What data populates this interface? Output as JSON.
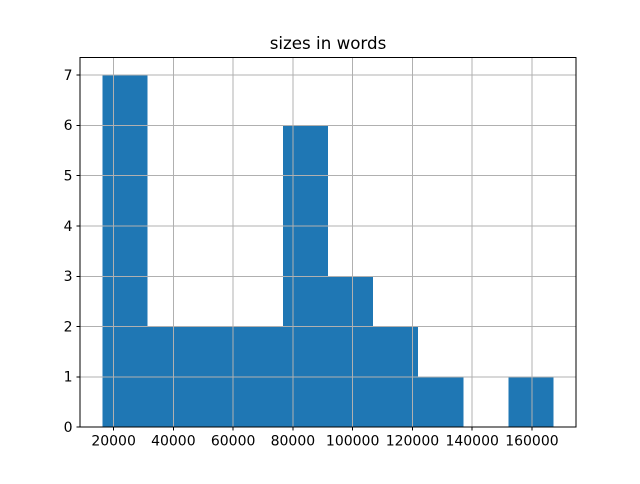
{
  "chart_data": {
    "type": "bar",
    "subtype": "histogram",
    "title": "sizes in words",
    "xlabel": "",
    "ylabel": "",
    "bin_edges": [
      16300,
      31390,
      46480,
      61570,
      76660,
      91750,
      106840,
      121930,
      137020,
      152110,
      167200
    ],
    "counts": [
      7,
      2,
      2,
      2,
      6,
      3,
      2,
      1,
      0,
      1
    ],
    "xticks": [
      "20000",
      "40000",
      "60000",
      "80000",
      "100000",
      "120000",
      "140000",
      "160000"
    ],
    "xtick_values": [
      20000,
      40000,
      60000,
      80000,
      100000,
      120000,
      140000,
      160000
    ],
    "yticks": [
      "0",
      "1",
      "2",
      "3",
      "4",
      "5",
      "6",
      "7"
    ],
    "ytick_values": [
      0,
      1,
      2,
      3,
      4,
      5,
      6,
      7
    ],
    "xlim": [
      8755,
      174745
    ],
    "ylim": [
      0,
      7.35
    ],
    "grid": true,
    "legend": "none",
    "bar_color": "#1f77b4",
    "grid_color": "#b0b0b0",
    "axis_color": "#000000",
    "text_color": "#000000",
    "background_color": "#ffffff"
  }
}
